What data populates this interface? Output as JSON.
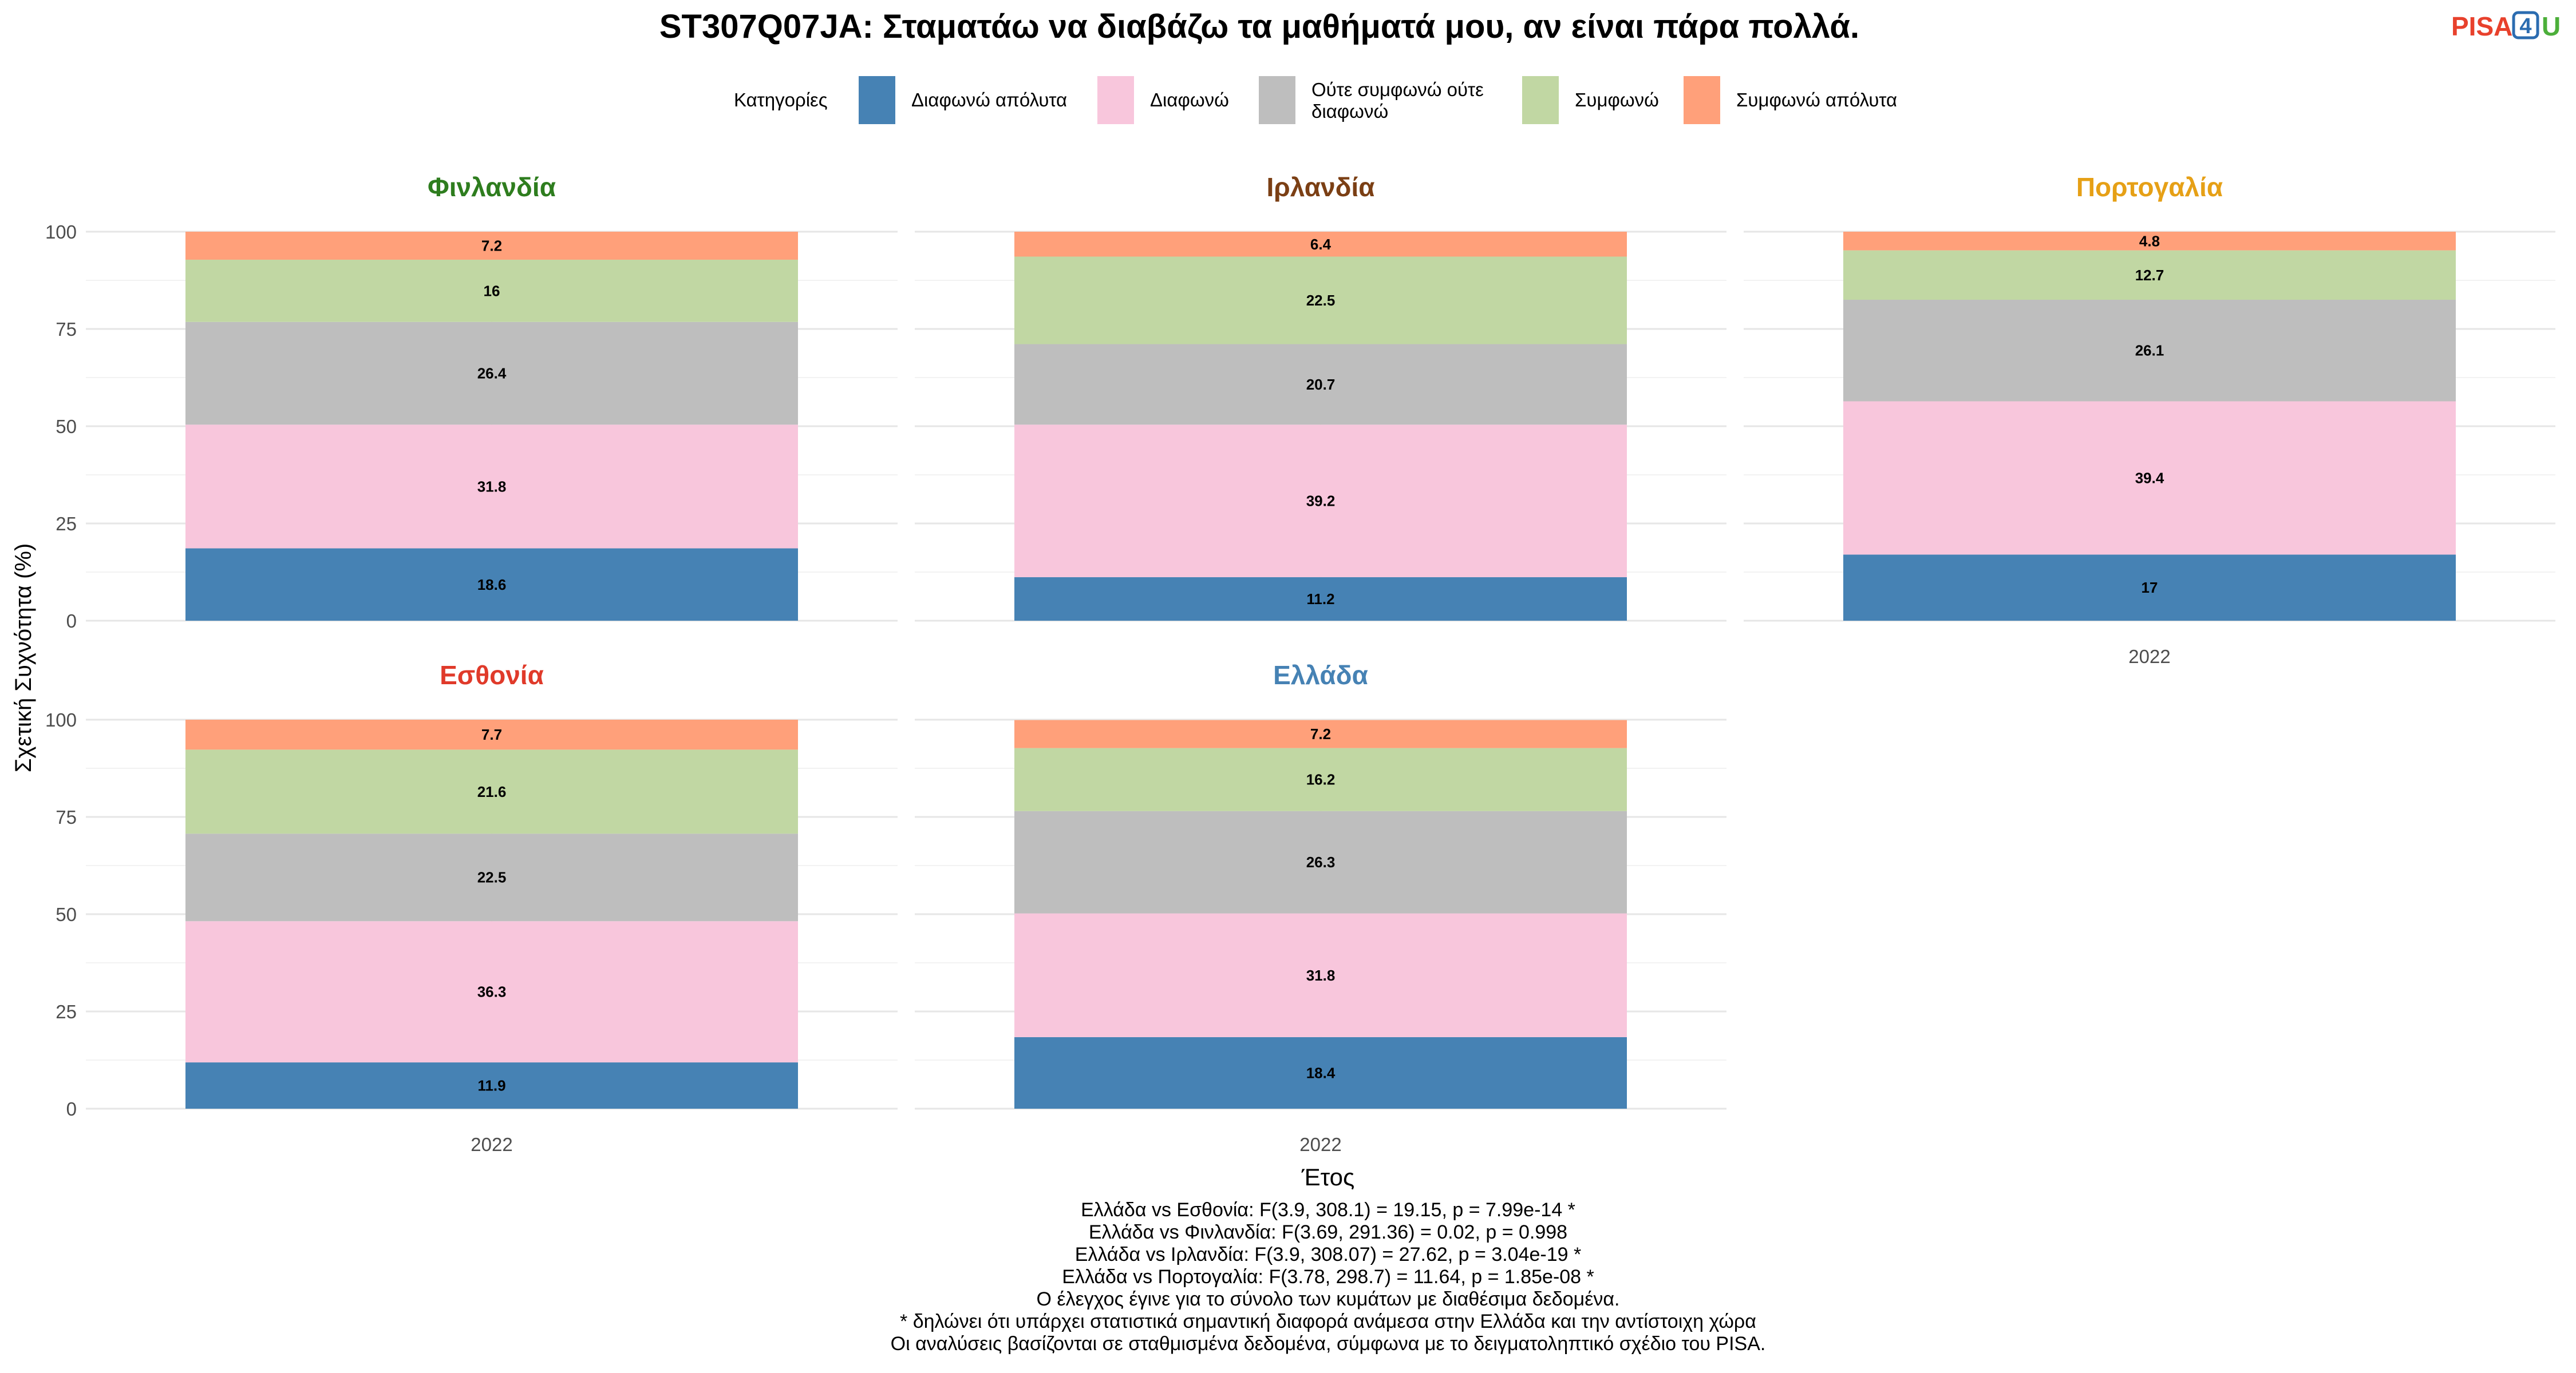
{
  "logo": {
    "part1": "PISA",
    "part2": "4",
    "part3": "U",
    "color1": "#e8412c",
    "color2": "#2b6cb0",
    "color3": "#4caf3a"
  },
  "chart_data": {
    "type": "bar",
    "stacked": true,
    "title": "ST307Q07JA: Σταματάω να διαβάζω τα μαθήματά μου, αν είναι πάρα πολλά.",
    "xlabel": "Έτος",
    "ylabel": "Σχετική Συχνότητα (%)",
    "ylim": [
      0,
      100
    ],
    "yticks": [
      "0",
      "25",
      "50",
      "75",
      "100"
    ],
    "grid": true,
    "legend": {
      "title": "Κατηγορίες",
      "position": "top",
      "items": [
        {
          "label": "Διαφωνώ απόλυτα",
          "color": "#4682b4"
        },
        {
          "label": "Διαφωνώ",
          "color": "#f8c6dc"
        },
        {
          "label_line1": "Ούτε συμφωνώ ούτε",
          "label_line2": "διαφωνώ",
          "color": "#bebebe"
        },
        {
          "label": "Συμφωνώ",
          "color": "#c1d7a3"
        },
        {
          "label": "Συμφωνώ απόλυτα",
          "color": "#ffa07a"
        }
      ]
    },
    "panels": [
      {
        "name": "Φινλανδία",
        "color": "#2e7d1e",
        "year": "2022",
        "values": [
          "18.6",
          "31.8",
          "26.4",
          "16",
          "7.2"
        ]
      },
      {
        "name": "Ιρλανδία",
        "color": "#7b3f14",
        "year": "2022",
        "values": [
          "11.2",
          "39.2",
          "20.7",
          "22.5",
          "6.4"
        ]
      },
      {
        "name": "Πορτογαλία",
        "color": "#e6a016",
        "year": "2022",
        "values": [
          "17",
          "39.4",
          "26.1",
          "12.7",
          "4.8"
        ]
      },
      {
        "name": "Εσθονία",
        "color": "#e03a2a",
        "year": "2022",
        "values": [
          "11.9",
          "36.3",
          "22.5",
          "21.6",
          "7.7"
        ]
      },
      {
        "name": "Ελλάδα",
        "color": "#4682b4",
        "year": "2022",
        "values": [
          "18.4",
          "31.8",
          "26.3",
          "16.2",
          "7.2"
        ]
      }
    ]
  },
  "notes": [
    "Ελλάδα vs Εσθονία: F(3.9, 308.1) = 19.15, p = 7.99e-14 *",
    "Ελλάδα vs Φινλανδία: F(3.69, 291.36) = 0.02, p = 0.998",
    "Ελλάδα vs Ιρλανδία: F(3.9, 308.07) = 27.62, p = 3.04e-19 *",
    "Ελλάδα vs Πορτογαλία: F(3.78, 298.7) = 11.64, p = 1.85e-08 *",
    "Ο έλεγχος έγινε για το σύνολο των κυμάτων με διαθέσιμα δεδομένα.",
    "* δηλώνει ότι υπάρχει στατιστικά σημαντική διαφορά ανάμεσα στην Ελλάδα και την αντίστοιχη χώρα",
    "Οι αναλύσεις βασίζονται σε σταθμισμένα δεδομένα, σύμφωνα με το δειγματοληπτικό σχέδιο του PISA."
  ]
}
